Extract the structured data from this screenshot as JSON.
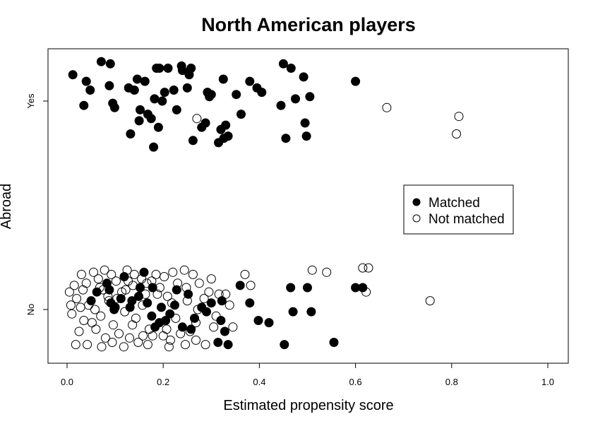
{
  "chart_data": {
    "type": "scatter",
    "title": "North American players",
    "xlabel": "Estimated propensity score",
    "ylabel": "Abroad",
    "xlim": [
      0,
      1
    ],
    "x_ticks": [
      "0.0",
      "0.2",
      "0.4",
      "0.6",
      "0.8",
      "1.0"
    ],
    "x_tick_values": [
      0,
      0.2,
      0.4,
      0.6,
      0.8,
      1.0
    ],
    "y_categories": [
      "No",
      "Yes"
    ],
    "legend": {
      "placement": "right-center",
      "entries": [
        {
          "label": "Matched",
          "symbol": "filled-circle"
        },
        {
          "label": "Not matched",
          "symbol": "open-circle"
        }
      ]
    },
    "grid": false,
    "note": "y values are category index (0 = No, 1 = Yes) with vertical jitter",
    "series": [
      {
        "name": "Matched",
        "points": [
          [
            0.012,
            1.12
          ],
          [
            0.035,
            0.98
          ],
          [
            0.04,
            1.09
          ],
          [
            0.048,
            1.05
          ],
          [
            0.071,
            1.18
          ],
          [
            0.088,
            1.07
          ],
          [
            0.09,
            1.17
          ],
          [
            0.095,
            0.99
          ],
          [
            0.099,
            0.97
          ],
          [
            0.128,
            1.06
          ],
          [
            0.132,
            0.85
          ],
          [
            0.14,
            1.05
          ],
          [
            0.146,
            1.1
          ],
          [
            0.152,
            0.96
          ],
          [
            0.15,
            0.91
          ],
          [
            0.162,
            1.09
          ],
          [
            0.168,
            0.94
          ],
          [
            0.175,
            0.92
          ],
          [
            0.18,
            0.79
          ],
          [
            0.182,
            1.01
          ],
          [
            0.186,
            1.15
          ],
          [
            0.19,
            0.88
          ],
          [
            0.192,
            1.15
          ],
          [
            0.198,
            1.0
          ],
          [
            0.203,
            1.04
          ],
          [
            0.21,
            1.15
          ],
          [
            0.222,
            1.05
          ],
          [
            0.228,
            0.96
          ],
          [
            0.238,
            1.16
          ],
          [
            0.24,
            1.14
          ],
          [
            0.25,
            1.06
          ],
          [
            0.254,
            1.12
          ],
          [
            0.258,
            1.15
          ],
          [
            0.262,
            0.82
          ],
          [
            0.28,
            0.88
          ],
          [
            0.288,
            0.9
          ],
          [
            0.292,
            1.04
          ],
          [
            0.296,
            1.02
          ],
          [
            0.3,
            1.03
          ],
          [
            0.315,
            0.81
          ],
          [
            0.32,
            0.87
          ],
          [
            0.325,
            1.1
          ],
          [
            0.326,
            0.83
          ],
          [
            0.33,
            0.89
          ],
          [
            0.335,
            0.84
          ],
          [
            0.352,
            1.03
          ],
          [
            0.362,
            0.94
          ],
          [
            0.38,
            1.09
          ],
          [
            0.395,
            1.06
          ],
          [
            0.405,
            1.04
          ],
          [
            0.445,
            0.98
          ],
          [
            0.45,
            1.17
          ],
          [
            0.455,
            0.83
          ],
          [
            0.466,
            1.15
          ],
          [
            0.475,
            1.01
          ],
          [
            0.492,
            1.11
          ],
          [
            0.495,
            0.9
          ],
          [
            0.498,
            0.84
          ],
          [
            0.505,
            1.02
          ],
          [
            0.6,
            1.09
          ],
          [
            0.05,
            0.04
          ],
          [
            0.062,
            0.08
          ],
          [
            0.083,
            0.12
          ],
          [
            0.088,
            0.09
          ],
          [
            0.091,
            0.03
          ],
          [
            0.098,
            0.0
          ],
          [
            0.1,
            0.01
          ],
          [
            0.112,
            0.05
          ],
          [
            0.119,
            0.15
          ],
          [
            0.131,
            0.01
          ],
          [
            0.135,
            0.04
          ],
          [
            0.149,
            0.06
          ],
          [
            0.152,
            0.1
          ],
          [
            0.16,
            0.17
          ],
          [
            0.167,
            0.03
          ],
          [
            0.176,
            -0.03
          ],
          [
            0.178,
            0.1
          ],
          [
            0.183,
            -0.08
          ],
          [
            0.192,
            -0.06
          ],
          [
            0.196,
            0.01
          ],
          [
            0.205,
            -0.05
          ],
          [
            0.214,
            -0.02
          ],
          [
            0.224,
            0.02
          ],
          [
            0.228,
            0.09
          ],
          [
            0.24,
            -0.08
          ],
          [
            0.252,
            0.07
          ],
          [
            0.258,
            -0.09
          ],
          [
            0.265,
            -0.04
          ],
          [
            0.28,
            0.01
          ],
          [
            0.29,
            -0.01
          ],
          [
            0.3,
            0.03
          ],
          [
            0.314,
            -0.15
          ],
          [
            0.32,
            -0.05
          ],
          [
            0.322,
            0.04
          ],
          [
            0.328,
            -0.1
          ],
          [
            0.335,
            -0.16
          ],
          [
            0.36,
            0.11
          ],
          [
            0.38,
            0.03
          ],
          [
            0.398,
            -0.05
          ],
          [
            0.42,
            -0.06
          ],
          [
            0.452,
            -0.16
          ],
          [
            0.465,
            0.1
          ],
          [
            0.47,
            -0.01
          ],
          [
            0.5,
            0.1
          ],
          [
            0.508,
            -0.01
          ],
          [
            0.6,
            0.1
          ],
          [
            0.555,
            -0.15
          ],
          [
            0.615,
            0.1
          ]
        ]
      },
      {
        "name": "Not matched",
        "points": [
          [
            0.27,
            0.92
          ],
          [
            0.665,
            0.97
          ],
          [
            0.81,
            0.85
          ],
          [
            0.815,
            0.93
          ],
          [
            0.005,
            0.08
          ],
          [
            0.01,
            -0.02
          ],
          [
            0.015,
            0.11
          ],
          [
            0.02,
            0.05
          ],
          [
            0.025,
            -0.1
          ],
          [
            0.03,
            0.16
          ],
          [
            0.035,
            -0.05
          ],
          [
            0.04,
            0.12
          ],
          [
            0.045,
            0.02
          ],
          [
            0.055,
            0.17
          ],
          [
            0.06,
            -0.09
          ],
          [
            0.065,
            0.14
          ],
          [
            0.07,
            -0.03
          ],
          [
            0.075,
            0.09
          ],
          [
            0.08,
            -0.13
          ],
          [
            0.085,
            0.06
          ],
          [
            0.092,
            0.16
          ],
          [
            0.096,
            -0.07
          ],
          [
            0.102,
            0.13
          ],
          [
            0.108,
            -0.11
          ],
          [
            0.114,
            0.08
          ],
          [
            0.12,
            -0.01
          ],
          [
            0.125,
            0.18
          ],
          [
            0.13,
            -0.13
          ],
          [
            0.137,
            0.11
          ],
          [
            0.143,
            -0.04
          ],
          [
            0.155,
            0.14
          ],
          [
            0.158,
            -0.12
          ],
          [
            0.163,
            0.07
          ],
          [
            0.171,
            -0.09
          ],
          [
            0.176,
            0.13
          ],
          [
            0.185,
            0.16
          ],
          [
            0.193,
            0.1
          ],
          [
            0.2,
            -0.12
          ],
          [
            0.209,
            0.06
          ],
          [
            0.215,
            -0.14
          ],
          [
            0.22,
            0.17
          ],
          [
            0.23,
            0.12
          ],
          [
            0.236,
            -0.11
          ],
          [
            0.244,
            0.18
          ],
          [
            0.25,
            0.04
          ],
          [
            0.256,
            -0.1
          ],
          [
            0.262,
            0.16
          ],
          [
            0.268,
            -0.06
          ],
          [
            0.275,
            0.12
          ],
          [
            0.285,
            0.05
          ],
          [
            0.295,
            0.08
          ],
          [
            0.305,
            -0.08
          ],
          [
            0.316,
            0.07
          ],
          [
            0.338,
            0.02
          ],
          [
            0.345,
            -0.08
          ],
          [
            0.37,
            0.16
          ],
          [
            0.382,
            0.11
          ],
          [
            0.51,
            0.18
          ],
          [
            0.54,
            0.17
          ],
          [
            0.615,
            0.19
          ],
          [
            0.622,
            0.08
          ],
          [
            0.627,
            0.19
          ],
          [
            0.755,
            0.04
          ],
          [
            0.3,
            0.14
          ],
          [
            0.31,
            -0.03
          ],
          [
            0.33,
            0.07
          ],
          [
            0.148,
            -0.15
          ],
          [
            0.018,
            -0.16
          ],
          [
            0.028,
            0.01
          ],
          [
            0.058,
            0.0
          ],
          [
            0.068,
            0.1
          ],
          [
            0.078,
            0.18
          ],
          [
            0.104,
            0.05
          ],
          [
            0.122,
            0.09
          ],
          [
            0.14,
            0.16
          ],
          [
            0.166,
            0.12
          ],
          [
            0.188,
            0.07
          ],
          [
            0.202,
            0.15
          ],
          [
            0.218,
            0.03
          ],
          [
            0.248,
            0.1
          ],
          [
            0.272,
            0.0
          ],
          [
            0.008,
            0.02
          ],
          [
            0.042,
            -0.16
          ],
          [
            0.072,
            -0.17
          ],
          [
            0.118,
            -0.17
          ],
          [
            0.168,
            -0.16
          ],
          [
            0.212,
            -0.17
          ],
          [
            0.246,
            -0.16
          ],
          [
            0.288,
            -0.16
          ],
          [
            0.052,
            -0.06
          ],
          [
            0.094,
            -0.15
          ],
          [
            0.136,
            -0.07
          ],
          [
            0.178,
            -0.12
          ],
          [
            0.226,
            -0.04
          ],
          [
            0.268,
            -0.14
          ],
          [
            0.033,
            0.09
          ],
          [
            0.087,
            0.04
          ],
          [
            0.127,
            0.13
          ],
          [
            0.157,
            0.02
          ],
          [
            0.207,
            -0.09
          ]
        ]
      }
    ]
  }
}
